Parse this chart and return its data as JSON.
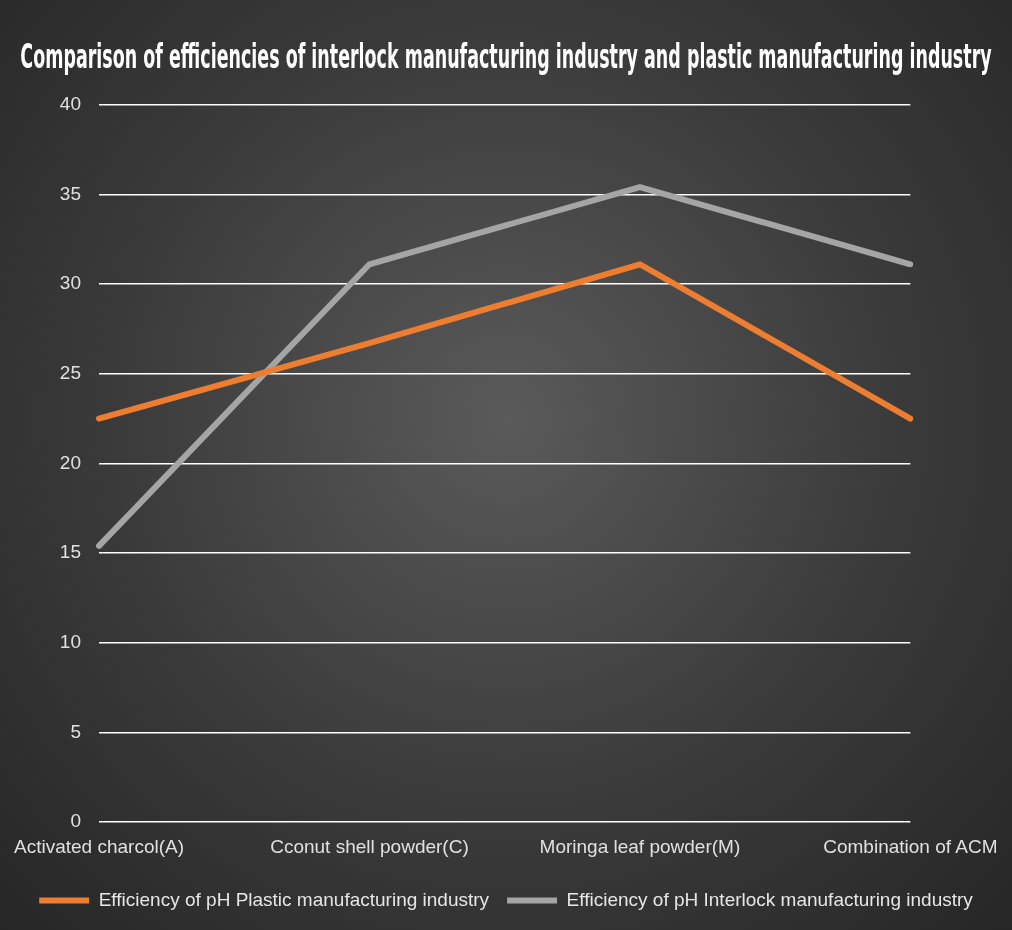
{
  "chart_data": {
    "type": "line",
    "title": "Comparison of efficiencies of interlock manufacturing industry and plastic manufacturing industry",
    "categories": [
      "Activated charcol(A)",
      "Cconut shell powder(C)",
      "Moringa leaf powder(M)",
      "Combination of ACM"
    ],
    "series": [
      {
        "name": "Efficiency of pH Plastic manufacturing industry",
        "color": "#ed7d31",
        "values": [
          22.5,
          26.7,
          31.1,
          22.5
        ]
      },
      {
        "name": "Efficiency of pH Interlock manufacturing industry",
        "color": "#a5a5a5",
        "values": [
          15.4,
          31.1,
          35.4,
          31.1
        ]
      }
    ],
    "ylim": [
      0,
      40
    ],
    "yticks": [
      0,
      5,
      10,
      15,
      20,
      25,
      30,
      35,
      40
    ],
    "grid": "y",
    "legend": "bottom",
    "marker": "none",
    "line_style": "solid"
  }
}
